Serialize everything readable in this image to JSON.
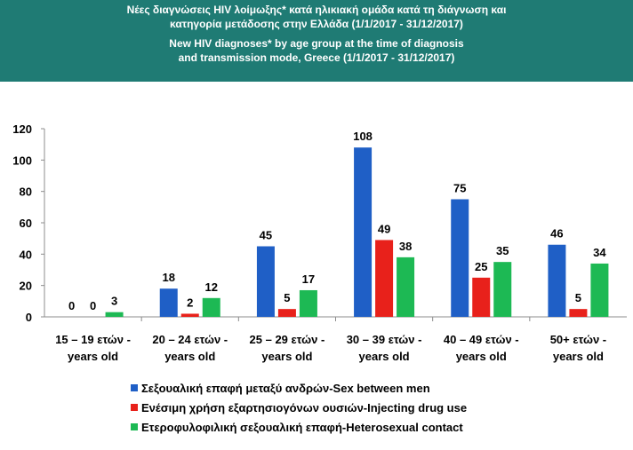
{
  "header": {
    "title_gr_line1": "Νέες διαγνώσεις HIV λοίμωξης* κατά ηλικιακή ομάδα κατά τη διάγνωση και",
    "title_gr_line2": "κατηγορία μετάδοσης στην Ελλάδα (1/1/2017 - 31/12/2017)",
    "title_en_line1": "New HIV diagnoses* by age group at the time of diagnosis",
    "title_en_line2": "and transmission mode, Greece (1/1/2017 - 31/12/2017)",
    "background_color": "#1f7b74"
  },
  "chart_data": {
    "type": "bar",
    "categories": [
      [
        "15 – 19 ετών -",
        "years old"
      ],
      [
        "20 – 24 ετών -",
        "years old"
      ],
      [
        "25 – 29 ετών -",
        "years old"
      ],
      [
        "30 – 39 ετών -",
        "years old"
      ],
      [
        "40 – 49 ετών -",
        "years old"
      ],
      [
        "50+  ετών -",
        "years old"
      ]
    ],
    "series": [
      {
        "name": "Σεξουαλική επαφή μεταξύ ανδρών-Sex between men",
        "color": "#1f5fc6",
        "values": [
          0,
          18,
          45,
          108,
          75,
          46
        ]
      },
      {
        "name": "Ενέσιμη χρήση εξαρτησιογόνων ουσιών-Injecting drug use",
        "color": "#e8211b",
        "values": [
          0,
          2,
          5,
          49,
          25,
          5
        ]
      },
      {
        "name": "Ετεροφυλοφιλική σεξουαλική επαφή-Heterosexual contact",
        "color": "#1db954",
        "values": [
          3,
          12,
          17,
          38,
          35,
          34
        ]
      }
    ],
    "y_ticks": [
      "0",
      "20",
      "40",
      "60",
      "80",
      "100",
      "120"
    ],
    "ylim": [
      0,
      120
    ],
    "grid": false,
    "legend_position": "bottom",
    "data_labels": true
  }
}
